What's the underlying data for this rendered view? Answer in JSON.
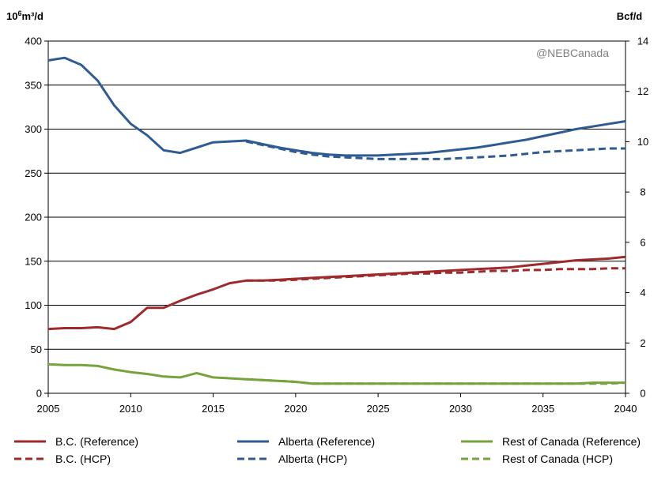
{
  "chart_data": {
    "type": "line",
    "watermark": "@NEBCanada",
    "y_left_unit": "10",
    "y_left_unit_sup": "6",
    "y_left_unit_rest": "m³/d",
    "y_right_unit": "Bcf/d",
    "ylim_left": [
      0,
      400
    ],
    "ylim_right": [
      0,
      14
    ],
    "xlim": [
      2005,
      2040
    ],
    "x_ticks": [
      "2005",
      "2010",
      "2015",
      "2020",
      "2025",
      "2030",
      "2035",
      "2040"
    ],
    "y_left_ticks": [
      "0",
      "50",
      "100",
      "150",
      "200",
      "250",
      "300",
      "350",
      "400"
    ],
    "y_right_ticks": [
      "0",
      "2",
      "4",
      "6",
      "8",
      "10",
      "12",
      "14"
    ],
    "grid": "horizontal",
    "legend_placement": "bottom",
    "colors": {
      "bc": "#9e2a2b",
      "alberta": "#2e5b93",
      "rest": "#76a33b"
    },
    "series": [
      {
        "name": "B.C. (Reference)",
        "color": "#9e2a2b",
        "dash": false,
        "x": [
          2005,
          2006,
          2007,
          2008,
          2009,
          2010,
          2011,
          2012,
          2013,
          2014,
          2015,
          2016,
          2017,
          2018,
          2019,
          2020,
          2021,
          2022,
          2023,
          2024,
          2025,
          2026,
          2027,
          2028,
          2029,
          2030,
          2031,
          2032,
          2033,
          2034,
          2035,
          2036,
          2037,
          2038,
          2039,
          2040
        ],
        "y": [
          73,
          74,
          74,
          75,
          73,
          81,
          97,
          97,
          105,
          112,
          118,
          125,
          128,
          128,
          129,
          130,
          131,
          132,
          133,
          134,
          135,
          136,
          137,
          138,
          139,
          140,
          141,
          142,
          143,
          145,
          147,
          149,
          151,
          152,
          153,
          155
        ]
      },
      {
        "name": "B.C. (HCP)",
        "color": "#9e2a2b",
        "dash": true,
        "x": [
          2017,
          2018,
          2019,
          2020,
          2021,
          2022,
          2023,
          2024,
          2025,
          2026,
          2027,
          2028,
          2029,
          2030,
          2031,
          2032,
          2033,
          2034,
          2035,
          2036,
          2037,
          2038,
          2039,
          2040
        ],
        "y": [
          128,
          128,
          128,
          129,
          130,
          131,
          132,
          133,
          134,
          135,
          136,
          136,
          137,
          137,
          138,
          139,
          139,
          140,
          140,
          141,
          141,
          141,
          142,
          142
        ]
      },
      {
        "name": "Alberta (Reference)",
        "color": "#2e5b93",
        "dash": false,
        "x": [
          2005,
          2006,
          2007,
          2008,
          2009,
          2010,
          2011,
          2012,
          2013,
          2014,
          2015,
          2016,
          2017,
          2018,
          2019,
          2020,
          2021,
          2022,
          2023,
          2024,
          2025,
          2026,
          2027,
          2028,
          2029,
          2030,
          2031,
          2032,
          2033,
          2034,
          2035,
          2036,
          2037,
          2038,
          2039,
          2040
        ],
        "y": [
          378,
          381,
          373,
          355,
          327,
          306,
          293,
          276,
          273,
          279,
          285,
          286,
          287,
          283,
          279,
          276,
          273,
          271,
          270,
          270,
          270,
          271,
          272,
          273,
          275,
          277,
          279,
          282,
          285,
          288,
          292,
          296,
          300,
          303,
          306,
          309
        ]
      },
      {
        "name": "Alberta (HCP)",
        "color": "#2e5b93",
        "dash": true,
        "x": [
          2017,
          2018,
          2019,
          2020,
          2021,
          2022,
          2023,
          2024,
          2025,
          2026,
          2027,
          2028,
          2029,
          2030,
          2031,
          2032,
          2033,
          2034,
          2035,
          2036,
          2037,
          2038,
          2039,
          2040
        ],
        "y": [
          286,
          282,
          278,
          274,
          271,
          269,
          268,
          267,
          266,
          266,
          266,
          266,
          266,
          267,
          268,
          269,
          270,
          272,
          274,
          275,
          276,
          277,
          278,
          278
        ]
      },
      {
        "name": "Rest of Canada (Reference)",
        "color": "#76a33b",
        "dash": false,
        "x": [
          2005,
          2006,
          2007,
          2008,
          2009,
          2010,
          2011,
          2012,
          2013,
          2014,
          2015,
          2016,
          2017,
          2018,
          2019,
          2020,
          2021,
          2022,
          2023,
          2024,
          2025,
          2026,
          2027,
          2028,
          2029,
          2030,
          2031,
          2032,
          2033,
          2034,
          2035,
          2036,
          2037,
          2038,
          2039,
          2040
        ],
        "y": [
          33,
          32,
          32,
          31,
          27,
          24,
          22,
          19,
          18,
          23,
          18,
          17,
          16,
          15,
          14,
          13,
          11,
          11,
          11,
          11,
          11,
          11,
          11,
          11,
          11,
          11,
          11,
          11,
          11,
          11,
          11,
          11,
          11,
          12,
          12,
          12
        ]
      },
      {
        "name": "Rest of Canada (HCP)",
        "color": "#76a33b",
        "dash": true,
        "x": [
          2017,
          2018,
          2019,
          2020,
          2021,
          2022,
          2023,
          2024,
          2025,
          2026,
          2027,
          2028,
          2029,
          2030,
          2031,
          2032,
          2033,
          2034,
          2035,
          2036,
          2037,
          2038,
          2039,
          2040
        ],
        "y": [
          16,
          15,
          14,
          13,
          11,
          11,
          11,
          11,
          11,
          11,
          11,
          11,
          11,
          11,
          11,
          11,
          11,
          11,
          11,
          11,
          11,
          11,
          11,
          12
        ]
      }
    ],
    "legend_order": [
      0,
      2,
      4,
      1,
      3,
      5
    ]
  }
}
